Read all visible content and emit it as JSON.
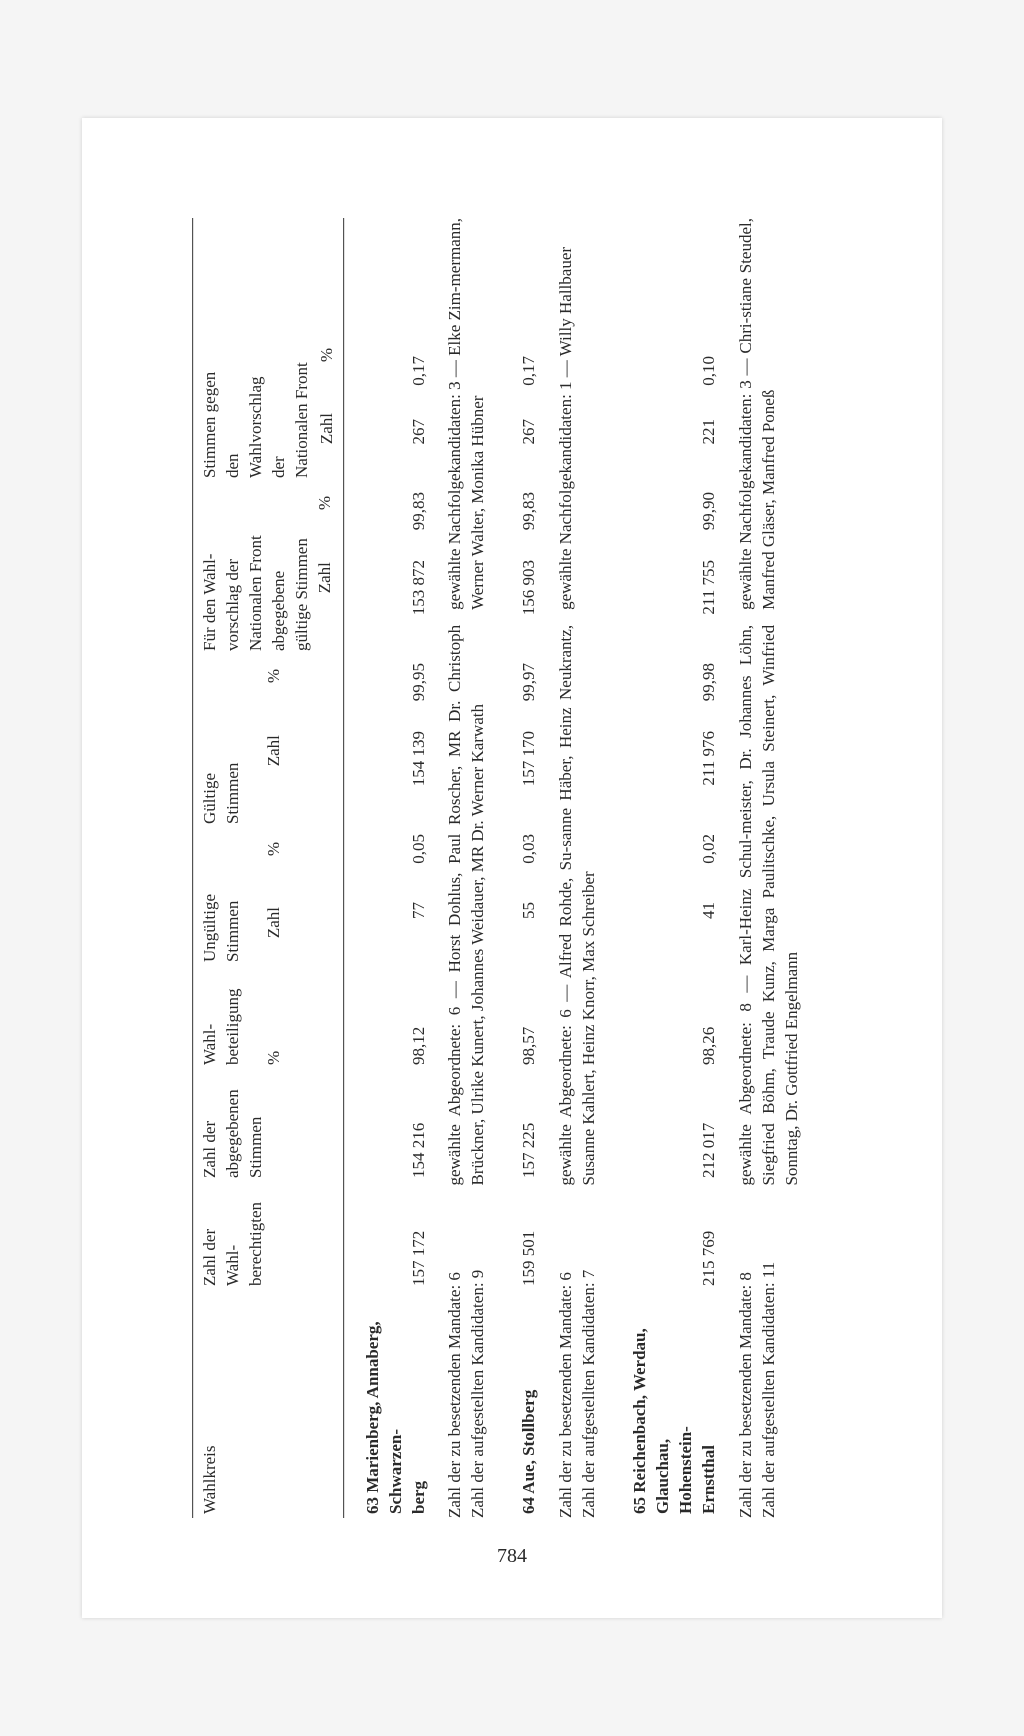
{
  "page_number": "784",
  "headers": {
    "wahlkreis": "Wahlkreis",
    "wahlber": "Zahl der\nWahl-\nberechtigten",
    "abgeg": "Zahl der\nabgegebenen\nStimmen",
    "beteil": "Wahl-\nbeteiligung",
    "ungultige": "Ungültige\nStimmen",
    "gultige": "Gültige\nStimmen",
    "fur": "Für den Wahl-\nvorschlag der\nNationalen Front\nabgegebene\ngültige Stimmen",
    "gegen": "Stimmen gegen\nden Wahlvorschlag\nder\nNationalen Front",
    "zahl": "Zahl",
    "prozent": "%"
  },
  "labels": {
    "mandate": "Zahl der zu besetzenden Mandate:",
    "kandidaten": "Zahl der aufgestellten Kandidaten:",
    "abgeordnete": "gewählte Abgeordnete:",
    "nachfolge": "gewählte Nachfolgekandidaten:"
  },
  "districts": [
    {
      "title": "63 Marienberg, Annaberg, Schwarzen-\n     berg",
      "wahlber": "157 172",
      "abgeg": "154 216",
      "beteil": "98,12",
      "ung_z": "77",
      "ung_p": "0,05",
      "gul_z": "154 139",
      "gul_p": "99,95",
      "fur_z": "153 872",
      "fur_p": "99,83",
      "geg_z": "267",
      "geg_p": "0,17",
      "mandate": "6",
      "kandidaten": "9",
      "abg_count": "6",
      "abg_names": "Horst Dohlus, Paul Roscher, MR Dr. Christoph Brückner, Ulrike Kunert, Johannes Weidauer, MR Dr. Werner Karwath",
      "nf_count": "3",
      "nf_names": "Elke Zim-mermann, Werner Walter, Monika Hübner"
    },
    {
      "title": "64 Aue, Stollberg",
      "wahlber": "159 501",
      "abgeg": "157 225",
      "beteil": "98,57",
      "ung_z": "55",
      "ung_p": "0,03",
      "gul_z": "157 170",
      "gul_p": "99,97",
      "fur_z": "156 903",
      "fur_p": "99,83",
      "geg_z": "267",
      "geg_p": "0,17",
      "mandate": "6",
      "kandidaten": "7",
      "abg_count": "6",
      "abg_names": "Alfred Rohde, Su-sanne Häber, Heinz Neukrantz, Susanne Kahlert, Heinz Knorr, Max Schreiber",
      "nf_count": "1",
      "nf_names": "Willy Hallbauer"
    },
    {
      "title": "65 Reichenbach, Werdau, Glauchau,\n     Hohenstein-\n     Ernstthal",
      "wahlber": "215 769",
      "abgeg": "212 017",
      "beteil": "98,26",
      "ung_z": "41",
      "ung_p": "0,02",
      "gul_z": "211 976",
      "gul_p": "99,98",
      "fur_z": "211 755",
      "fur_p": "99,90",
      "geg_z": "221",
      "geg_p": "0,10",
      "mandate": "8",
      "kandidaten": "11",
      "abg_count": "8",
      "abg_names": "Karl-Heinz Schul-meister, Dr. Johannes Löhn, Siegfried Böhm, Traude Kunz, Marga Paulitschke, Ursula Steinert, Winfried Sonntag, Dr. Gottfried Engelmann",
      "nf_count": "3",
      "nf_names": "Chri-stiane Steudel, Manfred Gläser, Manfred Poneß"
    }
  ]
}
